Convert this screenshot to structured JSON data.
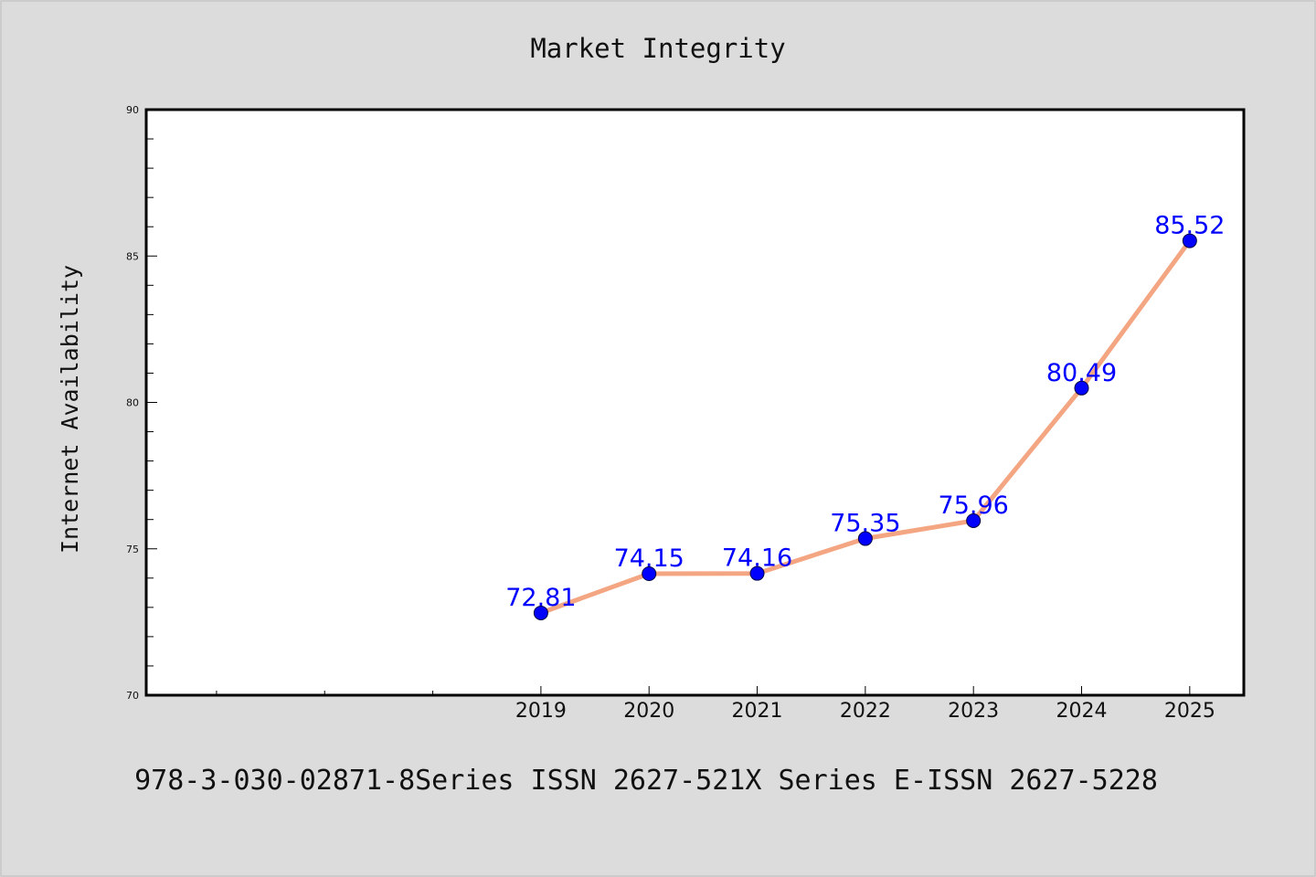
{
  "chart_data": {
    "type": "line",
    "title": "Market Integrity",
    "xlabel": "",
    "ylabel": "Internet Availability",
    "x": [
      2019,
      2020,
      2021,
      2022,
      2023,
      2024,
      2025
    ],
    "x_tick_labels": [
      "2019",
      "2020",
      "2021",
      "2022",
      "2023",
      "2024",
      "2025"
    ],
    "x_minor_ticks": [
      2016,
      2017,
      2018
    ],
    "xlim": [
      2015.35,
      2025.5
    ],
    "ylim": [
      70,
      90
    ],
    "y_ticks": [
      70,
      75,
      80,
      85,
      90
    ],
    "y_tick_labels": [
      "70",
      "75",
      "80",
      "85",
      "90"
    ],
    "y_minor_step": 1,
    "series": [
      {
        "values": [
          72.81,
          74.15,
          74.16,
          75.35,
          75.96,
          80.49,
          85.52
        ],
        "labels": [
          "72.81",
          "74.15",
          "74.16",
          "75.35",
          "75.96",
          "80.49",
          "85.52"
        ],
        "line_color": "#f4a582",
        "marker_color": "#0000ff",
        "label_color": "#0000ff"
      }
    ],
    "grid": false,
    "legend": "none"
  },
  "footer": {
    "text": "978-3-030-02871-8Series ISSN 2627-521X Series E-ISSN 2627-5228"
  }
}
